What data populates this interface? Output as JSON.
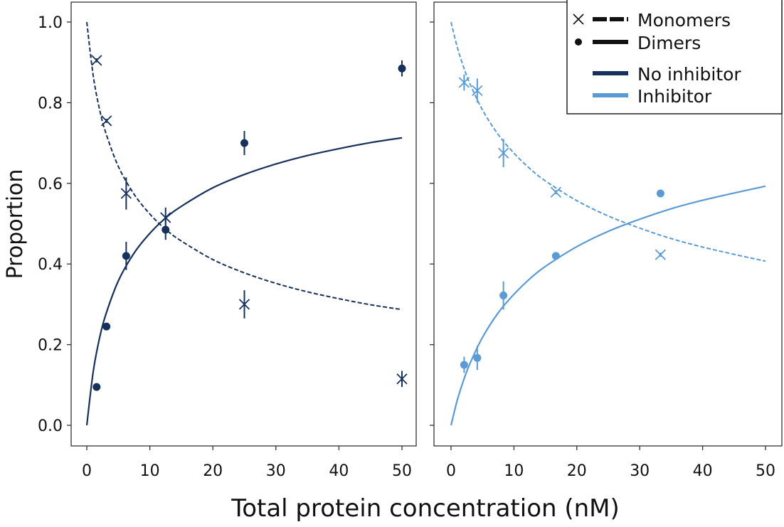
{
  "chart_data": {
    "type": "line",
    "xlabel": "Total protein concentration (nM)",
    "ylabel": "Proportion",
    "xlim": [
      0,
      50
    ],
    "ylim": [
      0,
      1
    ],
    "xticks": [
      "0",
      "10",
      "20",
      "30",
      "40",
      "50"
    ],
    "yticks": [
      "0.0",
      "0.2",
      "0.4",
      "0.6",
      "0.8",
      "1.0"
    ],
    "grid": false,
    "legend": {
      "placement": "top-right",
      "entries": [
        {
          "label": "Monomers",
          "marker": "x",
          "line": "dashed"
        },
        {
          "label": "Dimers",
          "marker": "circle",
          "line": "solid"
        },
        {
          "label": "No inhibitor",
          "color": "#17315c"
        },
        {
          "label": "Inhibitor",
          "color": "#5b9bd5"
        }
      ]
    },
    "panels": [
      {
        "condition": "No inhibitor",
        "color": "#17315c",
        "monomers": {
          "x": [
            1.56,
            3.125,
            6.25,
            12.5,
            25,
            50
          ],
          "y": [
            0.905,
            0.755,
            0.575,
            0.515,
            0.3,
            0.115
          ],
          "err": [
            0.005,
            0.005,
            0.04,
            0.025,
            0.035,
            0.02
          ]
        },
        "dimers": {
          "x": [
            1.56,
            3.125,
            6.25,
            12.5,
            25,
            50
          ],
          "y": [
            0.095,
            0.245,
            0.42,
            0.485,
            0.7,
            0.885
          ],
          "err": [
            0.005,
            0.005,
            0.035,
            0.025,
            0.03,
            0.02
          ]
        },
        "fit_x": [
          0,
          1,
          2,
          3,
          5,
          7.5,
          10,
          12.5,
          15,
          20,
          25,
          30,
          35,
          40,
          45,
          50
        ],
        "fit_monomer": [
          1,
          0.869,
          0.785,
          0.726,
          0.642,
          0.573,
          0.524,
          0.486,
          0.457,
          0.411,
          0.378,
          0.352,
          0.331,
          0.314,
          0.299,
          0.287
        ]
      },
      {
        "condition": "Inhibitor",
        "color": "#5b9bd5",
        "monomers": {
          "x": [
            2.08,
            4.17,
            8.33,
            16.67,
            33.3
          ],
          "y": [
            0.85,
            0.83,
            0.675,
            0.578,
            0.423
          ],
          "err": [
            0.02,
            0.03,
            0.035,
            0.005,
            0.005
          ]
        },
        "dimers": {
          "x": [
            2.08,
            4.17,
            8.33,
            16.67,
            33.3
          ],
          "y": [
            0.15,
            0.167,
            0.322,
            0.42,
            0.575
          ],
          "err": [
            0.02,
            0.03,
            0.035,
            0.005,
            0.005
          ]
        },
        "fit_x": [
          0,
          1,
          2,
          3,
          5,
          7.5,
          10,
          12.5,
          15,
          20,
          25,
          30,
          35,
          40,
          45,
          50
        ],
        "fit_monomer": [
          1,
          0.937,
          0.888,
          0.847,
          0.782,
          0.721,
          0.675,
          0.637,
          0.606,
          0.557,
          0.519,
          0.489,
          0.463,
          0.442,
          0.424,
          0.407
        ]
      }
    ]
  }
}
